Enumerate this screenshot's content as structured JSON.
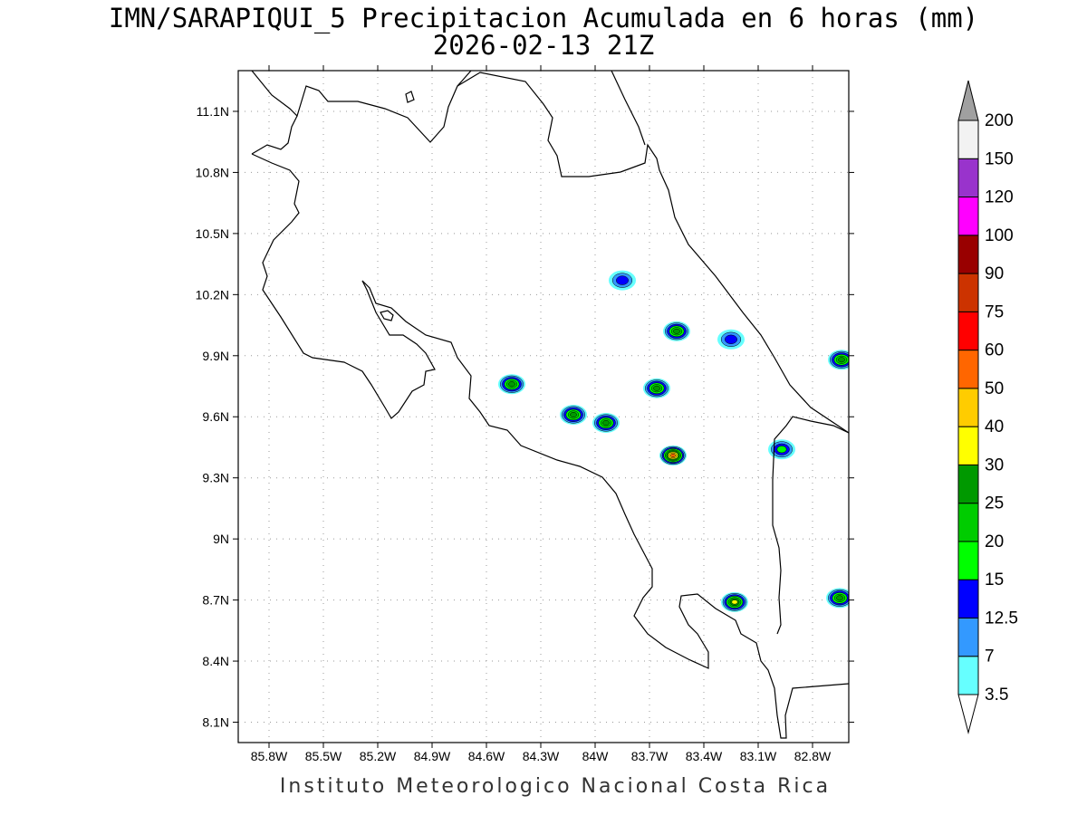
{
  "header": {
    "title": "IMN/SARAPIQUI_5 Precipitacion Acumulada en 6 horas (mm)",
    "subtitle": "2026-02-13 21Z"
  },
  "footer": {
    "credit": "Instituto Meteorologico Nacional Costa Rica"
  },
  "map": {
    "lon_labels": [
      "85.8W",
      "85.5W",
      "85.2W",
      "84.9W",
      "84.6W",
      "84.3W",
      "84W",
      "83.7W",
      "83.4W",
      "83.1W",
      "82.8W"
    ],
    "lat_labels": [
      "11.1N",
      "10.8N",
      "10.5N",
      "10.2N",
      "9.9N",
      "9.6N",
      "9.3N",
      "9N",
      "8.7N",
      "8.4N",
      "8.1N"
    ],
    "lon_values": [
      -85.8,
      -85.5,
      -85.2,
      -84.9,
      -84.6,
      -84.3,
      -84.0,
      -83.7,
      -83.4,
      -83.1,
      -82.8
    ],
    "lat_values": [
      11.1,
      10.8,
      10.5,
      10.2,
      9.9,
      9.6,
      9.3,
      9.0,
      8.7,
      8.4,
      8.1
    ],
    "lon_range": [
      -85.97,
      -82.6
    ],
    "lat_range": [
      8.0,
      11.3
    ],
    "grid": true
  },
  "colorbar": {
    "units": "mm",
    "levels": [
      "3.5",
      "7",
      "12.5",
      "15",
      "20",
      "25",
      "30",
      "40",
      "50",
      "60",
      "75",
      "90",
      "100",
      "120",
      "150",
      "200"
    ],
    "colors": [
      "#66ffff",
      "#3399ff",
      "#0000ff",
      "#00ff00",
      "#00cc00",
      "#009900",
      "#ffff00",
      "#ffcc00",
      "#ff6600",
      "#ff0000",
      "#cc3300",
      "#990000",
      "#ff00ff",
      "#9933cc",
      "#f2f2f2"
    ],
    "under_color": "#ffffff",
    "over_color": "#a0a0a0"
  },
  "chart_data": {
    "type": "heatmap",
    "title": "IMN/SARAPIQUI_5 Precipitacion Acumulada en 6 horas (mm)",
    "subtitle": "2026-02-13 21Z",
    "xlabel": "",
    "ylabel": "",
    "x_range": [
      -85.97,
      -82.6
    ],
    "y_range": [
      8.0,
      11.3
    ],
    "cells": [
      {
        "lon": -83.85,
        "lat": 10.27,
        "max_mm": 12.5
      },
      {
        "lon": -83.55,
        "lat": 10.02,
        "max_mm": 25
      },
      {
        "lon": -83.25,
        "lat": 9.98,
        "max_mm": 12.5
      },
      {
        "lon": -84.46,
        "lat": 9.76,
        "max_mm": 25
      },
      {
        "lon": -83.66,
        "lat": 9.74,
        "max_mm": 25
      },
      {
        "lon": -84.12,
        "lat": 9.61,
        "max_mm": 25
      },
      {
        "lon": -83.94,
        "lat": 9.57,
        "max_mm": 25
      },
      {
        "lon": -83.57,
        "lat": 9.41,
        "max_mm": 50
      },
      {
        "lon": -82.97,
        "lat": 9.44,
        "max_mm": 15
      },
      {
        "lon": -83.23,
        "lat": 8.69,
        "max_mm": 30
      },
      {
        "lon": -82.64,
        "lat": 9.88,
        "max_mm": 25
      },
      {
        "lon": -82.65,
        "lat": 8.71,
        "max_mm": 25
      }
    ]
  }
}
